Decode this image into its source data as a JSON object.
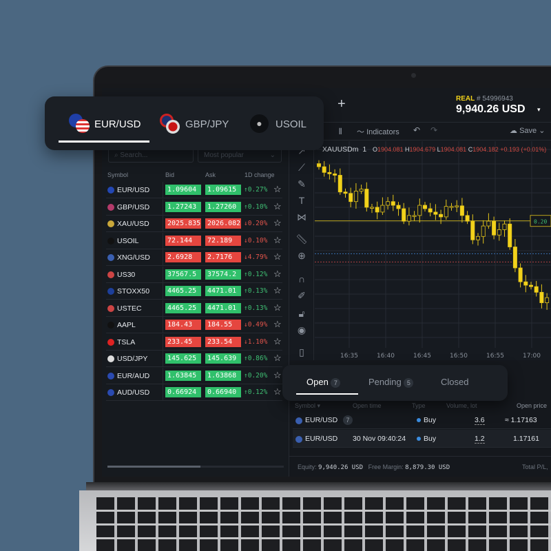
{
  "colors": {
    "accent": "#f2d21b",
    "up": "#30c06b",
    "down": "#e5463f",
    "up_text": "#3fbf73",
    "down_text": "#e2544b",
    "background": "#4b6781"
  },
  "instrument_tabs": [
    {
      "label": "EUR/USD",
      "icon": "eur-usd-flag-icon",
      "active": true
    },
    {
      "label": "GBP/JPY",
      "icon": "gbp-jpy-flag-icon",
      "active": false
    },
    {
      "label": "USOIL",
      "icon": "oil-drop-icon",
      "active": false
    }
  ],
  "topbar": {
    "add_tab": "+",
    "account_type": "REAL",
    "account_number": "# 54996943",
    "balance": "9,940.26 USD",
    "caret": "▾"
  },
  "toolbar": {
    "timeframe": "m",
    "indicators": "Indicators",
    "save": "Save"
  },
  "watchlist": {
    "search_placeholder": "Search...",
    "filter": "Most popular",
    "columns": [
      "Symbol",
      "Bid",
      "Ask",
      "1D change"
    ],
    "rows": [
      {
        "symbol": "EUR/USD",
        "bid": "1.09604",
        "ask": "1.09615",
        "change": "↑0.27%",
        "dir": "up"
      },
      {
        "symbol": "GBP/USD",
        "bid": "1.27243",
        "ask": "1.27260",
        "change": "↑0.10%",
        "dir": "up"
      },
      {
        "symbol": "XAU/USD",
        "bid": "2025.835",
        "ask": "2026.082",
        "change": "↓0.20%",
        "dir": "down"
      },
      {
        "symbol": "USOIL",
        "bid": "72.144",
        "ask": "72.189",
        "change": "↓0.10%",
        "dir": "down"
      },
      {
        "symbol": "XNG/USD",
        "bid": "2.6928",
        "ask": "2.7176",
        "change": "↓4.79%",
        "dir": "down"
      },
      {
        "symbol": "US30",
        "bid": "37567.5",
        "ask": "37574.2",
        "change": "↑0.12%",
        "dir": "up"
      },
      {
        "symbol": "STOXX50",
        "bid": "4465.25",
        "ask": "4471.01",
        "change": "↑0.13%",
        "dir": "up"
      },
      {
        "symbol": "USTEC",
        "bid": "4465.25",
        "ask": "4471.01",
        "change": "↑0.13%",
        "dir": "up"
      },
      {
        "symbol": "AAPL",
        "bid": "184.43",
        "ask": "184.55",
        "change": "↓0.49%",
        "dir": "down"
      },
      {
        "symbol": "TSLA",
        "bid": "233.45",
        "ask": "233.54",
        "change": "↓1.10%",
        "dir": "down"
      },
      {
        "symbol": "USD/JPY",
        "bid": "145.625",
        "ask": "145.639",
        "change": "↑0.86%",
        "dir": "up"
      },
      {
        "symbol": "EUR/AUD",
        "bid": "1.63845",
        "ask": "1.63868",
        "change": "↑0.20%",
        "dir": "up"
      },
      {
        "symbol": "AUD/USD",
        "bid": "0.66924",
        "ask": "0.66940",
        "change": "↑0.12%",
        "dir": "up"
      }
    ]
  },
  "chart_header": {
    "symbol": "XAUUSDm",
    "interval": "1",
    "o_label": "O",
    "o": "1904.081",
    "h_label": "H",
    "h": "1904.679",
    "l_label": "L",
    "l": "1904.081",
    "c_label": "C",
    "c": "1904.182",
    "change": "+0.193 (+0.01%)"
  },
  "chart_data": {
    "type": "candlestick",
    "x_ticks": [
      "16:35",
      "16:40",
      "16:45",
      "16:50",
      "16:55",
      "17:00"
    ],
    "closes": [
      1905.39,
      1905.19,
      1905.14,
      1905.09,
      1904.5,
      1904.45,
      1904.16,
      1904.53,
      1904.6,
      1903.96,
      1903.96,
      1903.79,
      1904.03,
      1904.16,
      1904.03,
      1903.91,
      1903.47,
      1903.67,
      1903.67,
      1904.03,
      1903.91,
      1903.79,
      1903.71,
      1903.62,
      1903.99,
      1903.99,
      1904.01,
      1903.67,
      1903.47,
      1902.81,
      1902.93,
      1903.3,
      1903.47,
      1902.98,
      1903.17,
      1903.37,
      1902.56,
      1901.82,
      1901.33,
      1901.21,
      1901.16,
      1900.96,
      1900.59,
      1900.77
    ],
    "open_first": 1905.5,
    "price_range": [
      1899.0,
      1906.0
    ],
    "position_line": {
      "price": 1903.48,
      "label": "0.20"
    },
    "bid_line": 1902.32,
    "ask_line": 1902.03,
    "grid": true
  },
  "orders": {
    "tabs": [
      {
        "label": "Open",
        "count": "7"
      },
      {
        "label": "Pending",
        "count": "5"
      },
      {
        "label": "Closed",
        "count": ""
      }
    ],
    "columns": [
      "Symbol ▾",
      "Open time",
      "Type",
      "Volume, lot",
      "Open price"
    ],
    "rows": [
      {
        "symbol": "EUR/USD",
        "count": "7",
        "time": "",
        "type": "Buy",
        "volume": "3.6",
        "price": "≈ 1.17163"
      },
      {
        "symbol": "EUR/USD",
        "count": "",
        "time": "30 Nov 09:40:24",
        "type": "Buy",
        "volume": "1.2",
        "price": "1.17161"
      }
    ],
    "footer": {
      "equity_label": "Equity:",
      "equity": "9,940.26 USD",
      "free_margin_label": "Free Margin:",
      "free_margin": "8,879.30 USD",
      "total_pl_label": "Total P/L,"
    }
  }
}
